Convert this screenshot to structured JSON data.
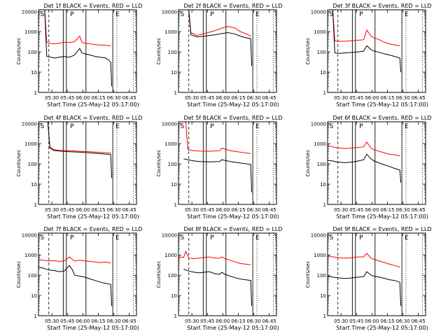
{
  "chart_data": [
    {
      "type": "line",
      "title": "Det 1f BLACK = Events, RED = LLD",
      "ylabel": "Counts/sec",
      "xlabel": "Start Time (25-May-12 05:17:00)",
      "x_ticks": [
        "05:30",
        "05:45",
        "06:00",
        "06:15",
        "06:30",
        "06:45"
      ],
      "y_ticks": [
        "1",
        "10",
        "100",
        "1000",
        "10000"
      ],
      "y_scale": "log",
      "ylim": [
        1,
        12000
      ],
      "x_range_minutes": [
        0,
        95
      ],
      "markers": [
        "S",
        "P",
        "E"
      ],
      "series": [
        {
          "name": "LLD",
          "color": "#ff0000",
          "x": [
            0,
            6,
            8,
            12,
            16,
            20,
            25,
            30,
            35,
            40,
            42,
            45,
            50,
            55,
            60,
            65,
            70
          ],
          "y": [
            12000,
            12000,
            300,
            260,
            250,
            270,
            300,
            290,
            320,
            600,
            300,
            270,
            250,
            230,
            220,
            210,
            200
          ]
        },
        {
          "name": "Events",
          "color": "#000000",
          "x": [
            0,
            6,
            8,
            12,
            16,
            20,
            25,
            30,
            35,
            40,
            42,
            45,
            50,
            55,
            60,
            65,
            68,
            70,
            71
          ],
          "y": [
            12000,
            12000,
            60,
            55,
            50,
            55,
            60,
            55,
            70,
            150,
            90,
            80,
            70,
            60,
            55,
            50,
            40,
            30,
            2
          ]
        }
      ]
    },
    {
      "type": "line",
      "title": "Det 2f BLACK = Events, RED = LLD",
      "ylabel": "Counts/sec",
      "xlabel": "Start Time (25-May-12 05:17:00)",
      "x_ticks": [
        "05:30",
        "05:45",
        "06:00",
        "06:15",
        "06:30",
        "06:45"
      ],
      "y_ticks": [
        "1",
        "10",
        "100",
        "1000",
        "10000"
      ],
      "y_scale": "log",
      "ylim": [
        1,
        12000
      ],
      "x_range_minutes": [
        0,
        95
      ],
      "markers": [
        "S",
        "P",
        "E"
      ],
      "series": [
        {
          "name": "LLD",
          "color": "#ff0000",
          "x": [
            0,
            10,
            12,
            18,
            25,
            35,
            42,
            48,
            55,
            60,
            65,
            70
          ],
          "y": [
            12000,
            12000,
            900,
            650,
            800,
            1100,
            1500,
            1800,
            1500,
            1000,
            800,
            600
          ]
        },
        {
          "name": "Events",
          "color": "#000000",
          "x": [
            0,
            10,
            12,
            18,
            25,
            35,
            42,
            48,
            55,
            60,
            65,
            70,
            71
          ],
          "y": [
            12000,
            12000,
            700,
            550,
            600,
            700,
            800,
            900,
            750,
            600,
            500,
            450,
            20
          ]
        }
      ]
    },
    {
      "type": "line",
      "title": "Det 3f BLACK = Events, RED = LLD",
      "ylabel": "Counts/sec",
      "xlabel": "Start Time (25-May-12 05:17:00)",
      "x_ticks": [
        "05:30",
        "05:45",
        "06:00",
        "06:15",
        "06:30",
        "06:45"
      ],
      "y_ticks": [
        "1",
        "10",
        "100",
        "1000",
        "10000"
      ],
      "y_scale": "log",
      "ylim": [
        1,
        12000
      ],
      "x_range_minutes": [
        0,
        95
      ],
      "markers": [
        "S",
        "P",
        "E"
      ],
      "series": [
        {
          "name": "LLD",
          "color": "#ff0000",
          "x": [
            0,
            5,
            7,
            12,
            18,
            25,
            30,
            35,
            38,
            42,
            45,
            50,
            55,
            60,
            65,
            70
          ],
          "y": [
            12000,
            12000,
            350,
            330,
            340,
            360,
            380,
            400,
            1200,
            600,
            500,
            400,
            300,
            250,
            220,
            200
          ]
        },
        {
          "name": "Events",
          "color": "#000000",
          "x": [
            0,
            5,
            7,
            12,
            18,
            25,
            30,
            35,
            38,
            42,
            45,
            50,
            55,
            60,
            65,
            70,
            71
          ],
          "y": [
            12000,
            12000,
            90,
            85,
            90,
            95,
            100,
            110,
            200,
            130,
            110,
            95,
            80,
            70,
            60,
            50,
            10
          ]
        }
      ]
    },
    {
      "type": "line",
      "title": "Det 4f BLACK = Events, RED = LLD",
      "ylabel": "Counts/sec",
      "xlabel": "Start Time (25-May-12 05:17:00)",
      "x_ticks": [
        "05:30",
        "05:45",
        "06:00",
        "06:15",
        "06:30",
        "06:45"
      ],
      "y_ticks": [
        "1",
        "10",
        "100",
        "1000",
        "10000"
      ],
      "y_scale": "log",
      "ylim": [
        1,
        12000
      ],
      "x_range_minutes": [
        0,
        95
      ],
      "markers": [
        "S",
        "P",
        "E"
      ],
      "series": [
        {
          "name": "LLD",
          "color": "#ff0000",
          "x": [
            0,
            9,
            11,
            15,
            20,
            30,
            40,
            50,
            60,
            70
          ],
          "y": [
            12000,
            12000,
            700,
            500,
            470,
            450,
            420,
            400,
            370,
            340
          ]
        },
        {
          "name": "Events",
          "color": "#000000",
          "x": [
            0,
            9,
            11,
            15,
            20,
            30,
            40,
            50,
            60,
            70,
            71
          ],
          "y": [
            12000,
            12000,
            600,
            460,
            430,
            400,
            380,
            350,
            320,
            290,
            20
          ]
        }
      ]
    },
    {
      "type": "line",
      "title": "Det 5f BLACK = Events, RED = LLD",
      "ylabel": "Counts/sec",
      "xlabel": "Start Time (25-May-12 05:17:00)",
      "x_ticks": [
        "05:30",
        "05:45",
        "06:00",
        "06:15",
        "06:30",
        "06:45"
      ],
      "y_ticks": [
        "1",
        "10",
        "100",
        "1000",
        "10000"
      ],
      "y_scale": "log",
      "ylim": [
        1,
        12000
      ],
      "x_range_minutes": [
        0,
        95
      ],
      "markers": [
        "S",
        "P",
        "E"
      ],
      "series": [
        {
          "name": "LLD",
          "color": "#ff0000",
          "x": [
            0,
            7,
            9,
            15,
            20,
            30,
            40,
            42,
            50,
            60,
            70
          ],
          "y": [
            12000,
            12000,
            500,
            450,
            430,
            420,
            450,
            600,
            450,
            380,
            320
          ]
        },
        {
          "name": "Events",
          "color": "#000000",
          "x": [
            5,
            7,
            9,
            15,
            20,
            30,
            40,
            42,
            50,
            60,
            70,
            71
          ],
          "y": [
            180,
            170,
            160,
            140,
            130,
            125,
            130,
            160,
            130,
            110,
            95,
            4
          ]
        }
      ]
    },
    {
      "type": "line",
      "title": "Det 6f BLACK = Events, RED = LLD",
      "ylabel": "Counts/sec",
      "xlabel": "Start Time (25-May-12 05:17:00)",
      "x_ticks": [
        "05:30",
        "05:45",
        "06:00",
        "06:15",
        "06:30",
        "06:45"
      ],
      "y_ticks": [
        "1",
        "10",
        "100",
        "1000",
        "10000"
      ],
      "y_scale": "log",
      "ylim": [
        1,
        12000
      ],
      "x_range_minutes": [
        0,
        95
      ],
      "markers": [
        "S",
        "P",
        "E"
      ],
      "series": [
        {
          "name": "LLD",
          "color": "#ff0000",
          "x": [
            0,
            5,
            7,
            12,
            18,
            25,
            30,
            35,
            38,
            42,
            45,
            50,
            55,
            60,
            65,
            70
          ],
          "y": [
            800,
            700,
            650,
            600,
            580,
            620,
            650,
            700,
            1200,
            600,
            500,
            420,
            350,
            300,
            280,
            250
          ]
        },
        {
          "name": "Events",
          "color": "#000000",
          "x": [
            0,
            5,
            7,
            12,
            18,
            25,
            30,
            35,
            38,
            42,
            45,
            50,
            55,
            60,
            65,
            70,
            71
          ],
          "y": [
            150,
            140,
            130,
            120,
            115,
            125,
            140,
            160,
            300,
            180,
            140,
            110,
            90,
            75,
            60,
            50,
            12
          ]
        }
      ]
    },
    {
      "type": "line",
      "title": "Det 7f BLACK = Events, RED = LLD",
      "ylabel": "Counts/sec",
      "xlabel": "Start Time (25-May-12 05:17:00)",
      "x_ticks": [
        "05:30",
        "05:45",
        "06:00",
        "06:15",
        "06:30",
        "06:45"
      ],
      "y_ticks": [
        "1",
        "10",
        "100",
        "1000",
        "10000"
      ],
      "y_scale": "log",
      "ylim": [
        1,
        12000
      ],
      "x_range_minutes": [
        0,
        95
      ],
      "markers": [
        "S",
        "P",
        "E"
      ],
      "series": [
        {
          "name": "LLD",
          "color": "#ff0000",
          "x": [
            0,
            5,
            10,
            15,
            20,
            25,
            30,
            33,
            35,
            40,
            45,
            50,
            55,
            60,
            65,
            70
          ],
          "y": [
            600,
            550,
            500,
            520,
            480,
            500,
            800,
            600,
            500,
            550,
            500,
            480,
            450,
            420,
            450,
            400
          ]
        },
        {
          "name": "Events",
          "color": "#000000",
          "x": [
            0,
            5,
            10,
            15,
            20,
            25,
            30,
            33,
            35,
            40,
            45,
            50,
            55,
            60,
            65,
            70,
            71
          ],
          "y": [
            250,
            220,
            180,
            170,
            150,
            160,
            300,
            180,
            100,
            90,
            80,
            65,
            55,
            45,
            40,
            35,
            3
          ]
        }
      ]
    },
    {
      "type": "line",
      "title": "Det 8f BLACK = Events, RED = LLD",
      "ylabel": "Counts/sec",
      "xlabel": "Start Time (25-May-12 05:17:00)",
      "x_ticks": [
        "05:30",
        "05:45",
        "06:00",
        "06:15",
        "06:30",
        "06:45"
      ],
      "y_ticks": [
        "1",
        "10",
        "100",
        "1000",
        "10000"
      ],
      "y_scale": "log",
      "ylim": [
        1,
        12000
      ],
      "x_range_minutes": [
        0,
        95
      ],
      "markers": [
        "S",
        "P",
        "E"
      ],
      "series": [
        {
          "name": "LLD",
          "color": "#ff0000",
          "x": [
            0,
            5,
            7,
            10,
            15,
            20,
            25,
            30,
            35,
            40,
            42,
            45,
            50,
            55,
            60,
            65,
            70
          ],
          "y": [
            800,
            750,
            1500,
            700,
            650,
            700,
            750,
            800,
            700,
            700,
            800,
            650,
            550,
            450,
            380,
            350,
            330
          ]
        },
        {
          "name": "Events",
          "color": "#000000",
          "x": [
            5,
            7,
            10,
            15,
            20,
            25,
            30,
            35,
            40,
            42,
            45,
            50,
            55,
            60,
            65,
            70,
            71
          ],
          "y": [
            200,
            180,
            160,
            140,
            130,
            140,
            150,
            120,
            110,
            140,
            110,
            90,
            75,
            65,
            60,
            55,
            3
          ]
        }
      ]
    },
    {
      "type": "line",
      "title": "Det 9f BLACK = Events, RED = LLD",
      "ylabel": "Counts/sec",
      "xlabel": "Start Time (25-May-12 05:17:00)",
      "x_ticks": [
        "05:30",
        "05:45",
        "06:00",
        "06:15",
        "06:30",
        "06:45"
      ],
      "y_ticks": [
        "1",
        "10",
        "100",
        "1000",
        "10000"
      ],
      "y_scale": "log",
      "ylim": [
        1,
        12000
      ],
      "x_range_minutes": [
        0,
        95
      ],
      "markers": [
        "S",
        "P",
        "E"
      ],
      "series": [
        {
          "name": "LLD",
          "color": "#ff0000",
          "x": [
            0,
            5,
            10,
            15,
            20,
            25,
            30,
            35,
            38,
            42,
            45,
            50,
            55,
            60,
            65,
            70
          ],
          "y": [
            900,
            800,
            750,
            700,
            700,
            750,
            800,
            800,
            1200,
            700,
            600,
            500,
            420,
            350,
            300,
            250
          ]
        },
        {
          "name": "Events",
          "color": "#000000",
          "x": [
            0,
            5,
            10,
            15,
            20,
            25,
            30,
            35,
            38,
            42,
            45,
            50,
            55,
            60,
            65,
            70,
            71
          ],
          "y": [
            90,
            80,
            75,
            70,
            70,
            75,
            80,
            85,
            150,
            100,
            90,
            80,
            70,
            60,
            55,
            45,
            3
          ]
        }
      ]
    }
  ]
}
